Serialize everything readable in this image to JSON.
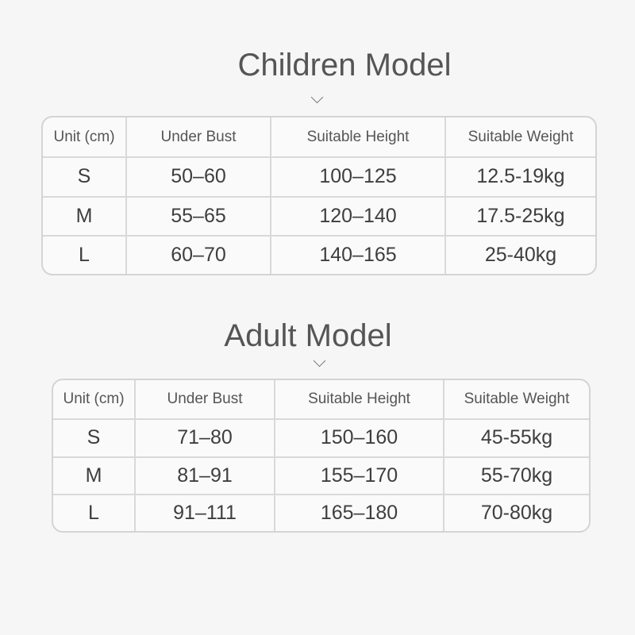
{
  "sections": [
    {
      "title": "Children Model",
      "headers": [
        "Unit (cm)",
        "Under Bust",
        "Suitable Height",
        "Suitable Weight"
      ],
      "rows": [
        [
          "S",
          "50–60",
          "100–125",
          "12.5-19kg"
        ],
        [
          "M",
          "55–65",
          "120–140",
          "17.5-25kg"
        ],
        [
          "L",
          "60–70",
          "140–165",
          "25-40kg"
        ]
      ]
    },
    {
      "title": "Adult Model",
      "headers": [
        "Unit (cm)",
        "Under Bust",
        "Suitable Height",
        "Suitable Weight"
      ],
      "rows": [
        [
          "S",
          "71–80",
          "150–160",
          "45-55kg"
        ],
        [
          "M",
          "81–91",
          "155–170",
          "55-70kg"
        ],
        [
          "L",
          "91–111",
          "165–180",
          "70-80kg"
        ]
      ]
    }
  ],
  "icons": {
    "divider": "chevron-down-icon"
  }
}
